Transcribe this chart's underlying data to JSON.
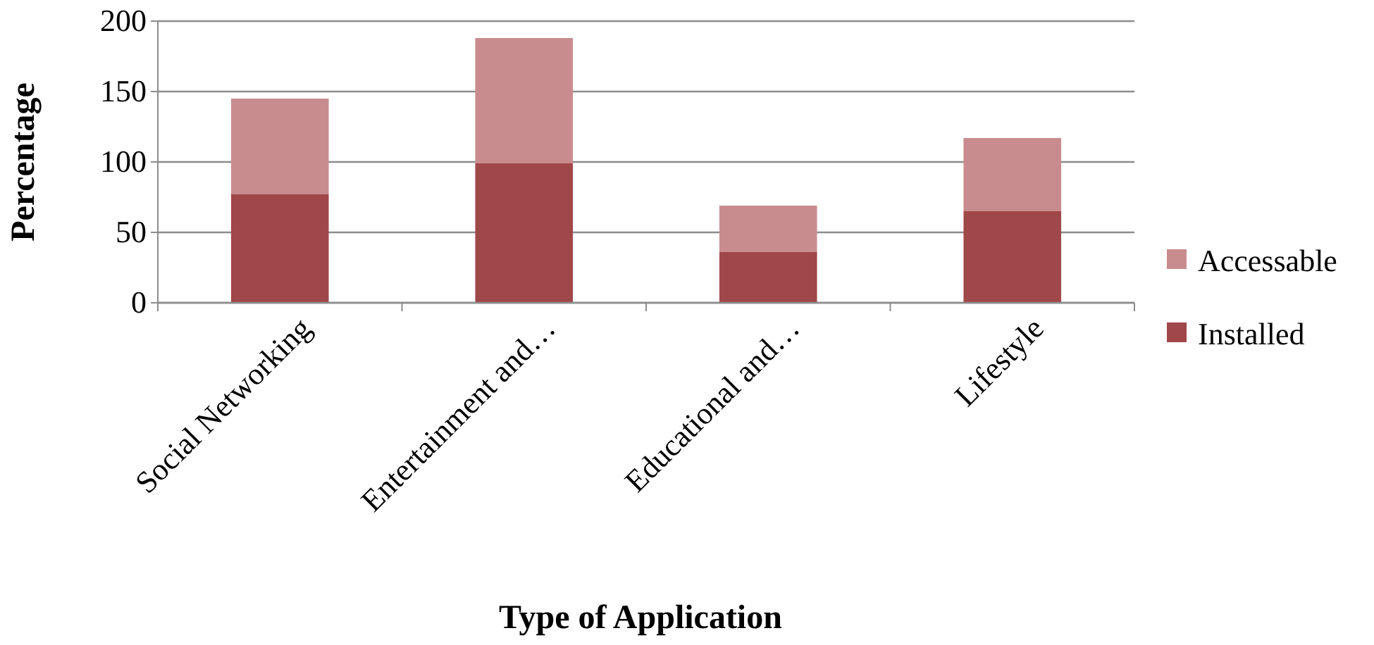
{
  "chart_data": {
    "type": "bar",
    "stacked": true,
    "xlabel": "Type of Application",
    "ylabel": "Percentage",
    "categories": [
      "Social Networking",
      "Entertainment and…",
      "Educational and…",
      "Lifestyle"
    ],
    "series": [
      {
        "name": "Installed",
        "color": "#a0474a",
        "values": [
          77,
          99,
          36,
          65
        ]
      },
      {
        "name": "Accessable",
        "color": "#c98c8e",
        "values": [
          68,
          89,
          33,
          52
        ]
      }
    ],
    "ylim": [
      0,
      200
    ],
    "yticks": [
      0,
      50,
      100,
      150,
      200
    ],
    "grid": "y",
    "legend": "right"
  }
}
